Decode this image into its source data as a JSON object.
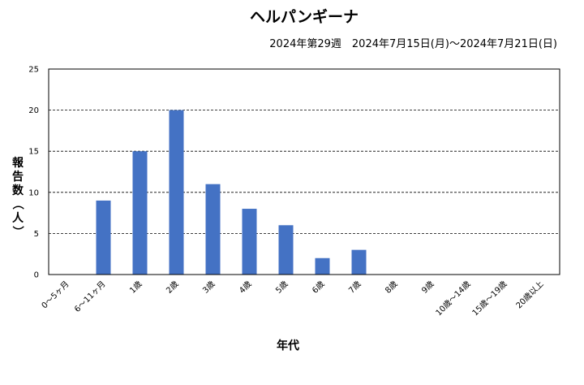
{
  "chart_data": {
    "type": "bar",
    "title": "ヘルパンギーナ",
    "subtitle": "2024年第29週　2024年7月15日(月)～2024年7月21日(日)",
    "xlabel": "年代",
    "ylabel": "報告数（人）",
    "categories": [
      "0～5ヶ月",
      "6～11ヶ月",
      "1歳",
      "2歳",
      "3歳",
      "4歳",
      "5歳",
      "6歳",
      "7歳",
      "8歳",
      "9歳",
      "10歳～14歳",
      "15歳～19歳",
      "20歳以上"
    ],
    "values": [
      0,
      9,
      15,
      20,
      11,
      8,
      6,
      2,
      3,
      0,
      0,
      0,
      0,
      0
    ],
    "ylim": [
      0,
      25
    ],
    "yticks": [
      0,
      5,
      10,
      15,
      20,
      25
    ],
    "grid": true,
    "bar_color": "#4472C4"
  }
}
